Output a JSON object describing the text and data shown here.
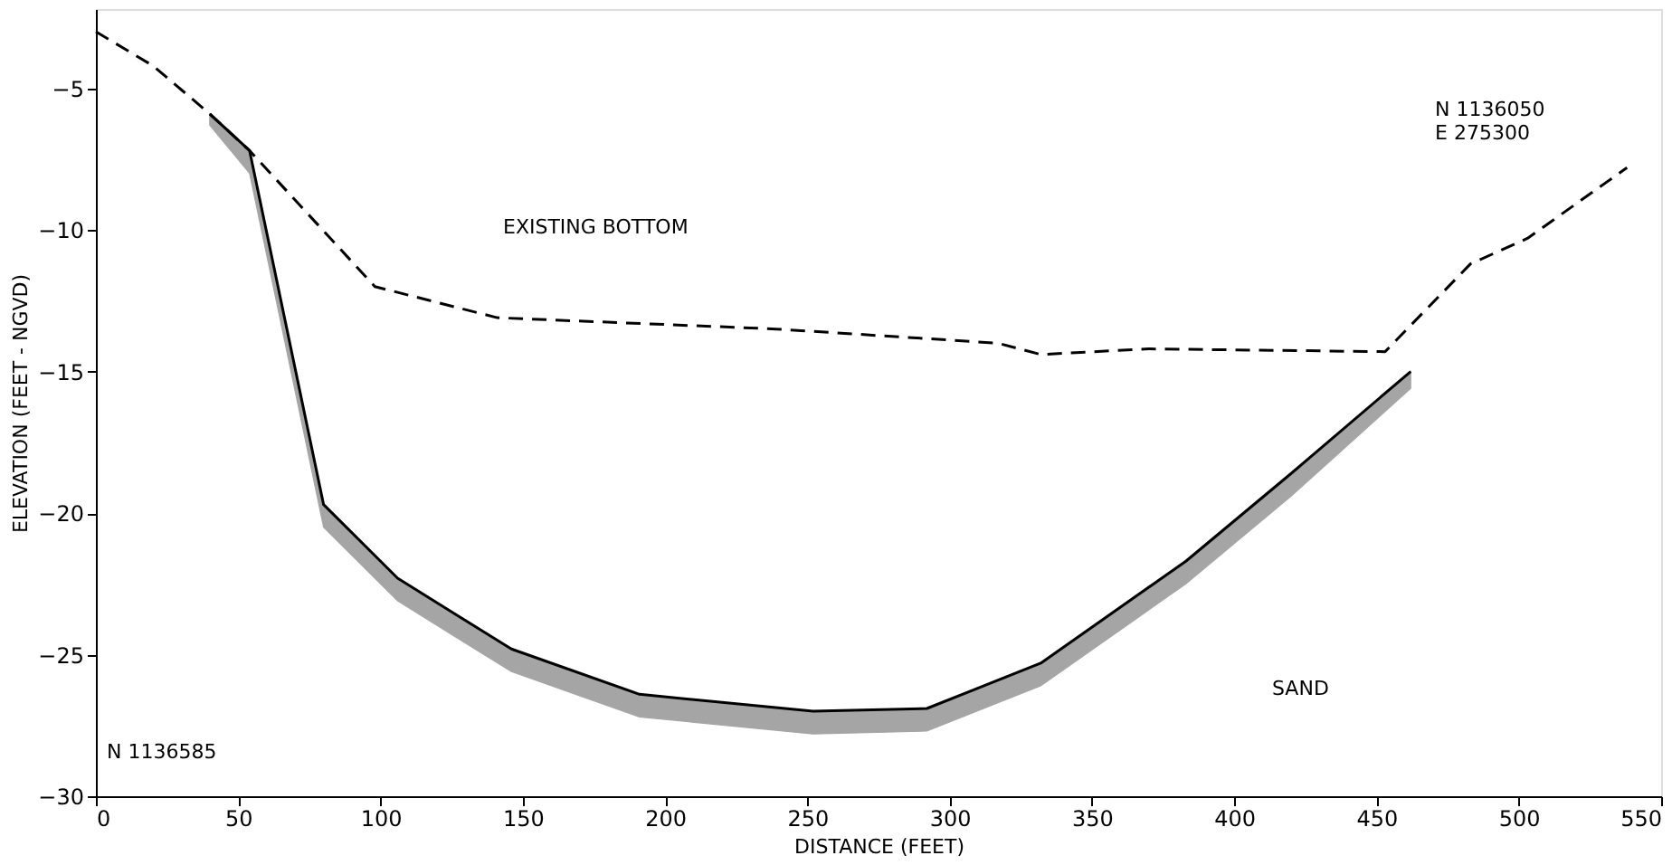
{
  "chart_data": {
    "type": "line",
    "xlabel": "DISTANCE (FEET)",
    "ylabel": "ELEVATION (FEET - NGVD)",
    "xlim": [
      0,
      550
    ],
    "xticks": [
      0,
      50,
      100,
      150,
      200,
      250,
      300,
      350,
      400,
      450,
      500,
      550
    ],
    "ylim": [
      -30,
      -2.2
    ],
    "yticks": [
      -30,
      -25,
      -20,
      -15,
      -10,
      -5
    ],
    "grid": false,
    "series": [
      {
        "color": "#000000",
        "line_style": "dashed",
        "x": [
          0,
          20,
          40,
          54,
          98,
          141,
          239,
          317,
          332,
          370,
          453,
          483,
          503,
          538
        ],
        "values": [
          -3.0,
          -4.2,
          -5.9,
          -7.2,
          -12.0,
          -13.1,
          -13.5,
          -14.0,
          -14.4,
          -14.2,
          -14.3,
          -11.2,
          -10.3,
          -7.8
        ]
      },
      {
        "color": "#000000",
        "line_style": "solid",
        "x": [
          40,
          54,
          80,
          106,
          146,
          191,
          252,
          292,
          332,
          383,
          420,
          462
        ],
        "values": [
          -5.9,
          -7.2,
          -19.7,
          -22.3,
          -24.8,
          -26.4,
          -27.0,
          -26.9,
          -25.3,
          -21.7,
          -18.6,
          -15.0
        ],
        "lower": [
          -6.3,
          -8.0,
          -20.5,
          -23.1,
          -25.6,
          -27.2,
          -27.8,
          -27.7,
          -26.1,
          -22.5,
          -19.4,
          -15.6
        ],
        "upper": [
          -5.9,
          -7.2,
          -19.7,
          -22.3,
          -24.8,
          -26.4,
          -27.0,
          -26.9,
          -25.3,
          -21.7,
          -18.6,
          -15.0
        ]
      }
    ],
    "annotations": [
      "EXISTING BOTTOM",
      "SAND",
      "N 1136050\nE 275300",
      "N 1136585"
    ]
  }
}
